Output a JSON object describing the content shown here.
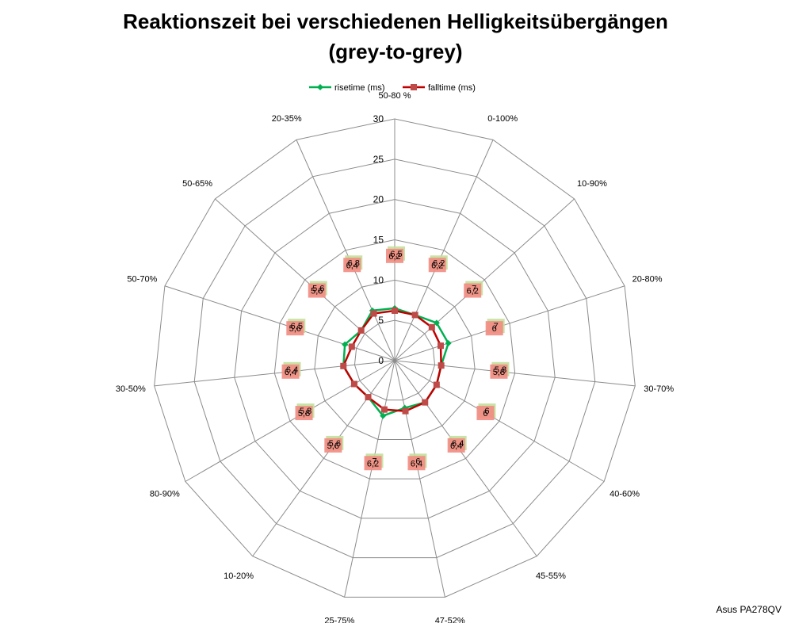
{
  "chart_data": {
    "type": "radar",
    "title_line1": "Reaktionszeit bei verschiedenen Helligkeitsübergängen",
    "title_line2": "(grey-to-grey)",
    "categories": [
      "50-80 %",
      "0-100%",
      "10-90%",
      "20-80%",
      "30-70%",
      "40-60%",
      "45-55%",
      "47-52%",
      "25-75%",
      "10-20%",
      "80-90%",
      "30-50%",
      "50-70%",
      "50-65%",
      "20-35%"
    ],
    "rlim": [
      0,
      30
    ],
    "ticks": [
      0,
      5,
      10,
      15,
      20,
      25,
      30
    ],
    "grid": true,
    "legend_position": "top",
    "series": [
      {
        "name": "risetime (ms)",
        "color": "#00b050",
        "values": [
          6.5,
          6.2,
          7,
          7,
          5.8,
          6,
          6.4,
          6,
          7,
          5.6,
          5.8,
          6.4,
          6.5,
          5.6,
          6.8
        ],
        "labels": [
          "6,5",
          "6,2",
          "7",
          "7",
          "5,8",
          "6",
          "6,4",
          "6",
          "7",
          "5,6",
          "5,8",
          "6,4",
          "6,5",
          "5,6",
          "6,8"
        ]
      },
      {
        "name": "falltime (ms)",
        "color": "#c00000",
        "values": [
          6.2,
          6.2,
          6.2,
          6,
          5.8,
          6,
          6.4,
          6.4,
          6.2,
          5.6,
          5.8,
          6.4,
          5.6,
          5.6,
          6.4
        ],
        "labels": [
          "6,2",
          "6,2",
          "6,2",
          "6",
          "5,8",
          "6",
          "6,4",
          "6,4",
          "6,2",
          "5,6",
          "5,8",
          "6,4",
          "5,6",
          "5,6",
          "6,4"
        ]
      }
    ]
  },
  "watermark": "Asus PA278QV"
}
